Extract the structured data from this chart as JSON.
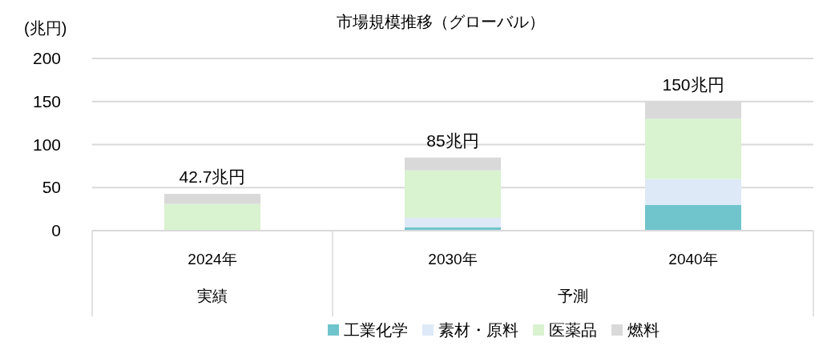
{
  "chart_data": {
    "type": "bar",
    "title": "市場規模推移（グローバル）",
    "ylabel": "(兆円)",
    "stacked": true,
    "categories": [
      "2024年",
      "2030年",
      "2040年"
    ],
    "series": [
      {
        "name": "工業化学",
        "color": "#70c4cc",
        "values": [
          0,
          4,
          30
        ]
      },
      {
        "name": "素材・原料",
        "color": "#dde9f6",
        "values": [
          0,
          11,
          30
        ]
      },
      {
        "name": "医薬品",
        "color": "#d9f2d0",
        "values": [
          31,
          55,
          70
        ]
      },
      {
        "name": "燃料",
        "color": "#d9d9d9",
        "values": [
          11.7,
          15,
          20
        ]
      }
    ],
    "totals": [
      "42.7兆円",
      "85兆円",
      "150兆円"
    ],
    "annotations": [
      "実績",
      "予測"
    ],
    "ylim": [
      0,
      200
    ],
    "yticks": [
      0,
      50,
      100,
      150,
      200
    ],
    "grid": "y",
    "legend": "bottom"
  }
}
